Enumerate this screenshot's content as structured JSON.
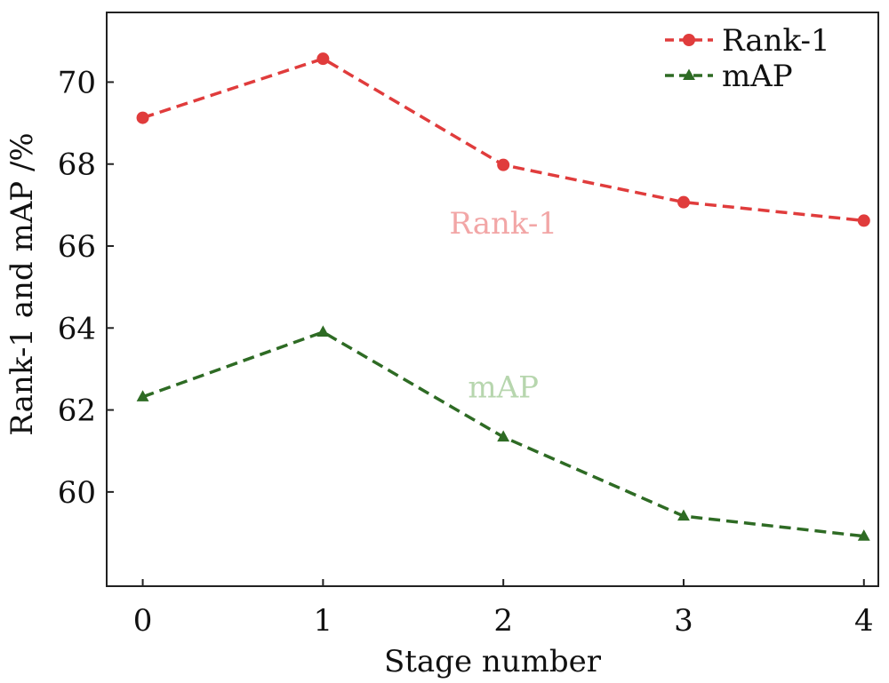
{
  "chart_data": {
    "type": "line",
    "title": "",
    "xlabel": "Stage number",
    "ylabel": "Rank-1 and mAP /%",
    "x": [
      0,
      1,
      2,
      3,
      4
    ],
    "x_ticks": [
      "0",
      "1",
      "2",
      "3",
      "4"
    ],
    "y_ticks": [
      "60",
      "62",
      "64",
      "66",
      "68",
      "70"
    ],
    "xlim": [
      -0.2,
      4.08
    ],
    "ylim": [
      57.7,
      71.7
    ],
    "grid": false,
    "legend_position": "top-right",
    "series": [
      {
        "name": "Rank-1",
        "values": [
          69.13,
          70.57,
          67.98,
          67.07,
          66.62
        ],
        "color": "#e03c3c",
        "marker": "circle",
        "line_style": "dashed"
      },
      {
        "name": "mAP",
        "values": [
          62.32,
          63.9,
          61.34,
          59.41,
          58.92
        ],
        "color": "#2e6b24",
        "marker": "triangle",
        "line_style": "dashed"
      }
    ],
    "annotations": [
      {
        "text": "Rank-1",
        "x": 2.0,
        "y": 66.3,
        "color": "#f2a6a6"
      },
      {
        "text": "mAP",
        "x": 2.0,
        "y": 62.3,
        "color": "#b7d6ae"
      }
    ]
  }
}
